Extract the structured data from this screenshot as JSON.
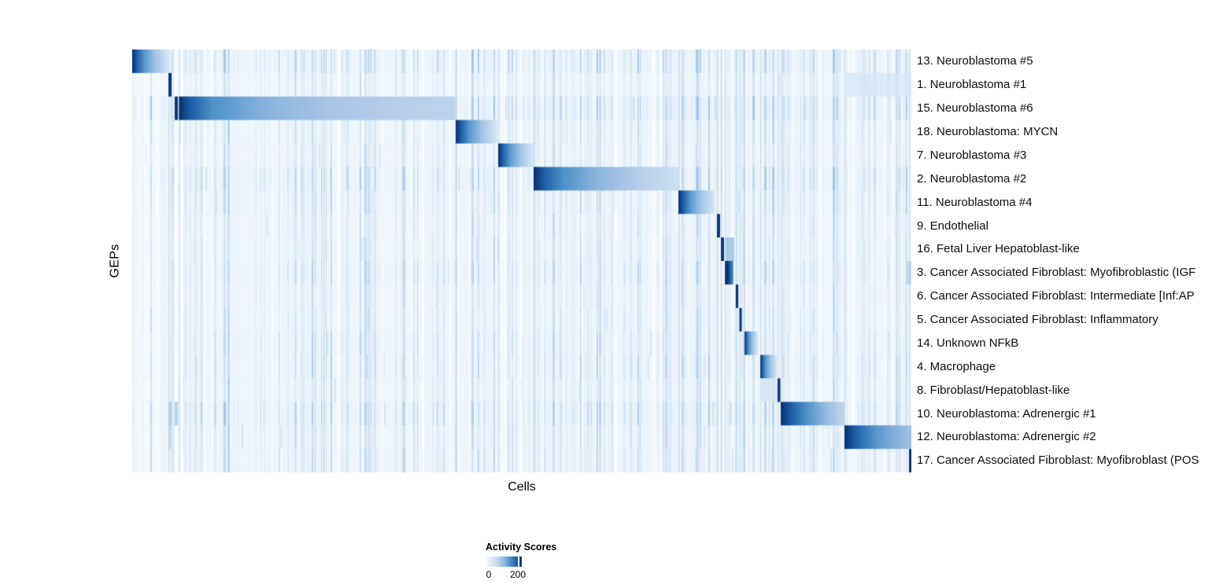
{
  "figure": {
    "xlabel": "Cells",
    "ylabel": "GEPs"
  },
  "chart_data": {
    "type": "heatmap",
    "title": "",
    "xlabel": "Cells",
    "ylabel": "GEPs",
    "x_axis": {
      "description": "cells ordered by GEP cluster, no tick labels shown"
    },
    "colorbar": {
      "title": "Activity Scores",
      "min": 0,
      "max": 200,
      "tick_labels": [
        "0",
        "200"
      ],
      "tick_position_fraction": 0.89,
      "colormap": [
        "#f7fbff",
        "#c6dbef",
        "#6baed6",
        "#2171b5",
        "#08306b"
      ]
    },
    "plot_bg": "#f1f7fc",
    "boundary_line_color": "rgba(168,198,228,0.55)",
    "boundaries": [
      0.0465,
      0.0596,
      0.4152,
      0.4697,
      0.5152,
      0.701,
      0.7505,
      0.7556,
      0.7606,
      0.7747,
      0.7793,
      0.7859,
      0.8061,
      0.8283,
      0.8323,
      0.9141,
      0.997
    ],
    "block_profiles": {
      "gradient": [
        [
          0,
          "#082f6a"
        ],
        [
          0.12,
          "#1b5ba5"
        ],
        [
          0.35,
          "#5f9cd0"
        ],
        [
          0.65,
          "#a5c7e8"
        ],
        [
          1,
          "#d9e8f6"
        ]
      ],
      "long": [
        [
          0,
          "#082f6a"
        ],
        [
          0.04,
          "#1d5ca6"
        ],
        [
          0.12,
          "#4e90c8"
        ],
        [
          0.3,
          "#87b2dc"
        ],
        [
          0.55,
          "#a9c6e7"
        ],
        [
          1,
          "#bed4ee"
        ]
      ],
      "long2": [
        [
          0,
          "#082f6a"
        ],
        [
          0.07,
          "#1d5ca6"
        ],
        [
          0.2,
          "#4e90c8"
        ],
        [
          0.45,
          "#8fb7de"
        ],
        [
          0.75,
          "#b7d0ec"
        ],
        [
          1,
          "#cfdff3"
        ]
      ],
      "adren1": [
        [
          0,
          "#082f6a"
        ],
        [
          0.15,
          "#1a58a2"
        ],
        [
          0.4,
          "#4e90c8"
        ],
        [
          0.7,
          "#93badf"
        ],
        [
          1,
          "#c2d7ee"
        ]
      ],
      "adren2": [
        [
          0,
          "#082f6a"
        ],
        [
          0.18,
          "#2065ad"
        ],
        [
          0.45,
          "#5493c9"
        ],
        [
          0.75,
          "#85afda"
        ],
        [
          1,
          "#a2c2e4"
        ]
      ],
      "wide_stripe": [
        [
          0,
          "#12427f"
        ],
        [
          0.3,
          "#082f6a"
        ],
        [
          0.75,
          "#2f74b6"
        ],
        [
          1,
          "#6ba0d2"
        ]
      ],
      "stripe_color": "#0a3576"
    },
    "rows": [
      {
        "label": "13. Neuroblastoma #5",
        "noise": 0.5,
        "blocks": [
          {
            "x0": 0.0,
            "x1": 0.0475,
            "type": "gradient"
          }
        ]
      },
      {
        "label": "1. Neuroblastoma #1",
        "noise": 0.15,
        "blocks": [
          {
            "x0": 0.0465,
            "x1": 0.0505,
            "type": "stripe"
          }
        ],
        "extras": [
          {
            "x0": 0.916,
            "x1": 1.0,
            "color": "rgba(205,224,243,0.55)"
          }
        ]
      },
      {
        "label": "15. Neuroblastoma #6",
        "noise": 0.55,
        "blocks": [
          {
            "x0": 0.0545,
            "x1": 0.0585,
            "type": "stripe"
          },
          {
            "x0": 0.06,
            "x1": 0.414,
            "type": "long"
          }
        ]
      },
      {
        "label": "18. Neuroblastoma: MYCN",
        "noise": 0.25,
        "blocks": [
          {
            "x0": 0.4152,
            "x1": 0.4687,
            "type": "gradient"
          }
        ]
      },
      {
        "label": "7. Neuroblastoma #3",
        "noise": 0.2,
        "blocks": [
          {
            "x0": 0.4697,
            "x1": 0.5152,
            "type": "gradient"
          }
        ]
      },
      {
        "label": "2. Neuroblastoma #2",
        "noise": 0.5,
        "blocks": [
          {
            "x0": 0.5152,
            "x1": 0.701,
            "type": "long2"
          }
        ]
      },
      {
        "label": "11. Neuroblastoma #4",
        "noise": 0.3,
        "blocks": [
          {
            "x0": 0.701,
            "x1": 0.7475,
            "type": "gradient"
          }
        ]
      },
      {
        "label": "9. Endothelial",
        "noise": 0.2,
        "blocks": [
          {
            "x0": 0.7505,
            "x1": 0.7545,
            "type": "stripe"
          }
        ]
      },
      {
        "label": "16. Fetal Liver Hepatoblast-like",
        "noise": 0.25,
        "blocks": [
          {
            "x0": 0.7556,
            "x1": 0.7596,
            "type": "stripe"
          }
        ],
        "extras": [
          {
            "x0": 0.7617,
            "x1": 0.7727,
            "color": "rgba(150,190,225,0.8)"
          }
        ]
      },
      {
        "label": "3. Cancer Associated Fibroblast: Myofibroblastic (IGF",
        "noise": 0.3,
        "blocks": [
          {
            "x0": 0.7606,
            "x1": 0.7717,
            "type": "wide_stripe"
          }
        ],
        "extras": [
          {
            "x0": 0.995,
            "x1": 1.0,
            "color": "rgba(170,200,230,0.6)"
          }
        ]
      },
      {
        "label": "6. Cancer Associated Fibroblast: Intermediate [Inf:AP",
        "noise": 0.2,
        "blocks": [
          {
            "x0": 0.7747,
            "x1": 0.7778,
            "type": "stripe"
          }
        ]
      },
      {
        "label": "5. Cancer Associated Fibroblast: Inflammatory",
        "noise": 0.25,
        "blocks": [
          {
            "x0": 0.7793,
            "x1": 0.7823,
            "type": "stripe"
          }
        ]
      },
      {
        "label": "14. Unknown NFkB",
        "noise": 0.3,
        "blocks": [
          {
            "x0": 0.7859,
            "x1": 0.803,
            "type": "gradient"
          }
        ]
      },
      {
        "label": "4. Macrophage",
        "noise": 0.35,
        "blocks": [
          {
            "x0": 0.8061,
            "x1": 0.8273,
            "type": "gradient"
          }
        ]
      },
      {
        "label": "8. Fibroblast/Hepatoblast-like",
        "noise": 0.25,
        "blocks": [
          {
            "x0": 0.8283,
            "x1": 0.8318,
            "type": "stripe"
          }
        ],
        "extras": [
          {
            "x0": 0.806,
            "x1": 0.8273,
            "color": "rgba(210,228,244,0.8)"
          }
        ]
      },
      {
        "label": "10. Neuroblastoma: Adrenergic #1",
        "noise": 0.5,
        "blocks": [
          {
            "x0": 0.8323,
            "x1": 0.9141,
            "type": "adren1"
          }
        ],
        "extras": [
          {
            "x0": 0.0465,
            "x1": 0.0505,
            "color": "rgba(160,195,228,0.7)"
          },
          {
            "x0": 0.0545,
            "x1": 0.0585,
            "color": "rgba(160,195,228,0.7)"
          }
        ]
      },
      {
        "label": "12. Neuroblastoma: Adrenergic #2",
        "noise": 0.3,
        "blocks": [
          {
            "x0": 0.9141,
            "x1": 1.0,
            "type": "adren2"
          }
        ],
        "extras": [
          {
            "x0": 0.0465,
            "x1": 0.0505,
            "color": "rgba(175,205,232,0.6)"
          }
        ]
      },
      {
        "label": "17. Cancer Associated Fibroblast: Myofibroblast (POS",
        "noise": 0.3,
        "blocks": [
          {
            "x0": 0.997,
            "x1": 1.0,
            "type": "stripe"
          }
        ]
      }
    ]
  }
}
